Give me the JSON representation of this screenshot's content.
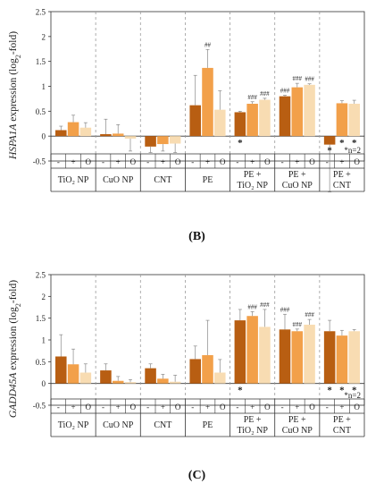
{
  "colors": {
    "dark": "#b85e12",
    "mid": "#f2a04a",
    "light": "#f8dcb2",
    "axis": "#333333",
    "dash": "#9a9a9a",
    "error": "#888888"
  },
  "condition_symbols": [
    "-",
    "+",
    "O"
  ],
  "chart_data": [
    {
      "type": "bar",
      "panel_label": "(B)",
      "ylabel_gene": "HSPA1A",
      "ylabel_rest": " expression (log",
      "ylabel_sub": "2",
      "ylabel_end": "-fold)",
      "ylim": [
        -0.5,
        2.5
      ],
      "yticks": [
        "-0.5",
        "0",
        "0.5",
        "1",
        "1.5",
        "2",
        "2.5"
      ],
      "yticks_values": [
        -0.5,
        0,
        0.5,
        1,
        1.5,
        2,
        2.5
      ],
      "groups": [
        {
          "label": "TiO₂ NP",
          "lines": [
            "TiO₂ NP"
          ]
        },
        {
          "label": "CuO NP",
          "lines": [
            "CuO NP"
          ]
        },
        {
          "label": "CNT",
          "lines": [
            "CNT"
          ]
        },
        {
          "label": "PE",
          "lines": [
            "PE"
          ]
        },
        {
          "label": "PE + TiO₂ NP",
          "lines": [
            "PE +",
            "TiO₂ NP"
          ]
        },
        {
          "label": "PE + CuO NP",
          "lines": [
            "PE +",
            "CuO NP"
          ]
        },
        {
          "label": "PE + CNT",
          "lines": [
            "PE +",
            "CNT"
          ]
        }
      ],
      "series": [
        {
          "name": "-",
          "values": [
            0.12,
            0.04,
            -0.21,
            0.62,
            0.48,
            0.8,
            -0.17
          ],
          "errors": [
            0.08,
            0.3,
            0.12,
            0.6,
            0.02,
            0.02,
            0.95
          ]
        },
        {
          "name": "+",
          "values": [
            0.28,
            0.05,
            -0.16,
            1.37,
            0.65,
            0.98,
            0.66
          ],
          "errors": [
            0.14,
            0.18,
            0.14,
            0.37,
            0.04,
            0.08,
            0.05
          ]
        },
        {
          "name": "O",
          "values": [
            0.17,
            -0.05,
            -0.15,
            0.53,
            0.73,
            1.03,
            0.65
          ],
          "errors": [
            0.1,
            0.25,
            0.18,
            0.38,
            0.03,
            0.02,
            0.07
          ]
        }
      ],
      "annotations": [
        {
          "group": 3,
          "bar": 1,
          "text": "##"
        },
        {
          "group": 4,
          "bar": 1,
          "text": "###"
        },
        {
          "group": 4,
          "bar": 2,
          "text": "###"
        },
        {
          "group": 5,
          "bar": 0,
          "text": "###"
        },
        {
          "group": 5,
          "bar": 1,
          "text": "###"
        },
        {
          "group": 5,
          "bar": 2,
          "text": "###"
        }
      ],
      "stars": [
        {
          "group": 4,
          "bar": 0
        },
        {
          "group": 6,
          "bar": 0
        },
        {
          "group": 6,
          "bar": 1
        },
        {
          "group": 6,
          "bar": 2
        }
      ],
      "footnote": "*n=2"
    },
    {
      "type": "bar",
      "panel_label": "(C)",
      "ylabel_gene": "GADD45A",
      "ylabel_rest": " expression (log",
      "ylabel_sub": "2",
      "ylabel_end": "-fold)",
      "ylim": [
        -0.5,
        2.5
      ],
      "yticks": [
        "-0.5",
        "0",
        "0.5",
        "1",
        "1.5",
        "2",
        "2.5"
      ],
      "yticks_values": [
        -0.5,
        0,
        0.5,
        1,
        1.5,
        2,
        2.5
      ],
      "groups": [
        {
          "label": "TiO₂ NP",
          "lines": [
            "TiO₂ NP"
          ]
        },
        {
          "label": "CuO NP",
          "lines": [
            "CuO NP"
          ]
        },
        {
          "label": "CNT",
          "lines": [
            "CNT"
          ]
        },
        {
          "label": "PE",
          "lines": [
            "PE"
          ]
        },
        {
          "label": "PE + TiO₂ NP",
          "lines": [
            "PE +",
            "TiO₂ NP"
          ]
        },
        {
          "label": "PE + CuO NP",
          "lines": [
            "PE +",
            "CuO NP"
          ]
        },
        {
          "label": "PE + CNT",
          "lines": [
            "PE +",
            "CNT"
          ]
        }
      ],
      "series": [
        {
          "name": "-",
          "values": [
            0.62,
            0.3,
            0.35,
            0.56,
            1.45,
            1.24,
            1.2
          ],
          "errors": [
            0.5,
            0.15,
            0.1,
            0.3,
            0.25,
            0.35,
            0.25
          ]
        },
        {
          "name": "+",
          "values": [
            0.44,
            0.06,
            0.11,
            0.65,
            1.55,
            1.2,
            1.1
          ],
          "errors": [
            0.35,
            0.1,
            0.1,
            0.8,
            0.1,
            0.05,
            0.12
          ]
        },
        {
          "name": "O",
          "values": [
            0.25,
            0.03,
            0.04,
            0.25,
            1.3,
            1.35,
            1.2
          ],
          "errors": [
            0.2,
            0.06,
            0.15,
            0.3,
            0.4,
            0.12,
            0.04
          ]
        }
      ],
      "annotations": [
        {
          "group": 4,
          "bar": 1,
          "text": "###"
        },
        {
          "group": 4,
          "bar": 2,
          "text": "###"
        },
        {
          "group": 5,
          "bar": 0,
          "text": "###"
        },
        {
          "group": 5,
          "bar": 1,
          "text": "###"
        },
        {
          "group": 5,
          "bar": 2,
          "text": "###"
        }
      ],
      "stars": [
        {
          "group": 4,
          "bar": 0
        },
        {
          "group": 6,
          "bar": 0
        },
        {
          "group": 6,
          "bar": 1
        },
        {
          "group": 6,
          "bar": 2
        }
      ],
      "footnote": "*n=2"
    }
  ]
}
